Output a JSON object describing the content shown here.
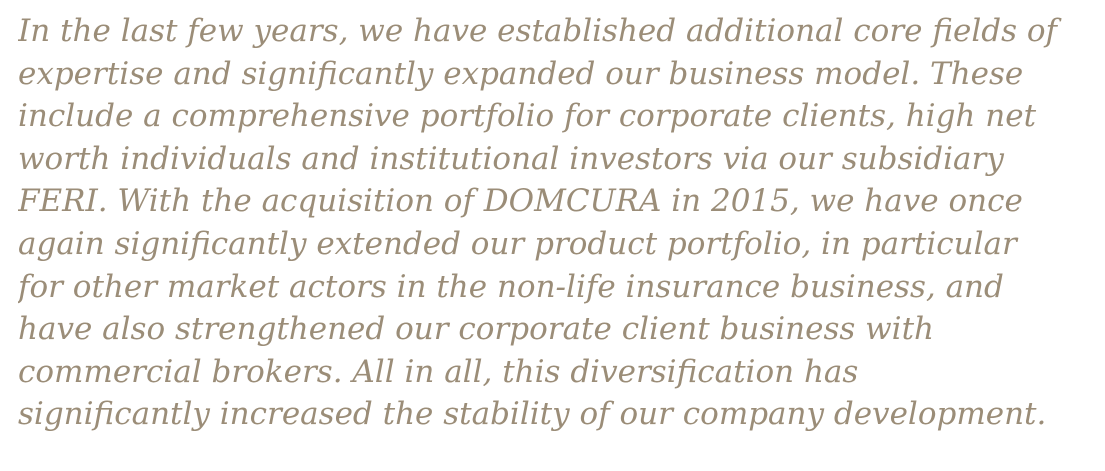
{
  "paragraph": {
    "lines": [
      "In the last few years, we have established additional core fields of",
      "expertise and significantly expanded our business model. These",
      "include a comprehensive portfolio for corporate clients, high net",
      "worth individuals and institutional investors via our subsidiary",
      "FERI. With the acquisition of DOMCURA in 2015, we have once",
      "again significantly extended our product portfolio, in particular",
      "for other market actors in the non-life insurance business, and",
      "have also strengthened our corporate client business with",
      "commercial brokers. All in all, this diversification has",
      "significantly increased the stability of our company development."
    ]
  }
}
